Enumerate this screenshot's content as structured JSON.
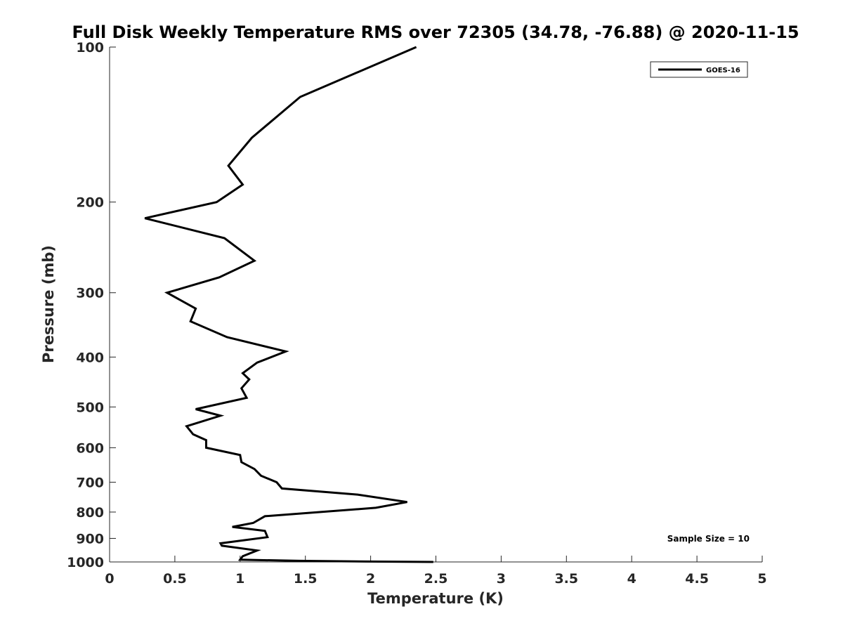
{
  "chart_data": {
    "type": "line",
    "title": "Full Disk Weekly Temperature RMS over 72305 (34.78, -76.88) @ 2020-11-15",
    "xlabel": "Temperature (K)",
    "ylabel": "Pressure (mb)",
    "xlim": [
      0,
      5
    ],
    "ylim": [
      1000,
      100
    ],
    "yscale": "log",
    "y_reversed": true,
    "xticks": [
      0,
      0.5,
      1,
      1.5,
      2,
      2.5,
      3,
      3.5,
      4,
      4.5,
      5
    ],
    "xtick_labels": [
      "0",
      "0.5",
      "1",
      "1.5",
      "2",
      "2.5",
      "3",
      "3.5",
      "4",
      "4.5",
      "5"
    ],
    "yticks": [
      100,
      200,
      300,
      400,
      500,
      600,
      700,
      800,
      900,
      1000
    ],
    "ytick_labels": [
      "100",
      "200",
      "300",
      "400",
      "500",
      "600",
      "700",
      "800",
      "900",
      "1000"
    ],
    "grid": false,
    "legend_position": "top-right",
    "annotation": "Sample Size = 10",
    "series": [
      {
        "name": "GOES-16",
        "color": "#000000",
        "x": [
          2.35,
          1.46,
          1.09,
          0.91,
          1.02,
          0.82,
          0.27,
          0.88,
          1.11,
          0.84,
          0.44,
          0.66,
          0.62,
          0.9,
          1.35,
          1.13,
          1.02,
          1.07,
          1.01,
          1.05,
          0.66,
          0.85,
          0.59,
          0.64,
          0.74,
          0.74,
          1.0,
          1.01,
          1.11,
          1.16,
          1.28,
          1.32,
          1.9,
          2.28,
          2.04,
          1.19,
          1.1,
          0.94,
          1.19,
          1.21,
          0.85,
          0.86,
          1.13,
          1.02,
          1.0,
          1.45,
          1.96,
          2.48
        ],
        "y": [
          100,
          125,
          150,
          170,
          185,
          200,
          215,
          235,
          260,
          280,
          300,
          322,
          341,
          366,
          390,
          410,
          430,
          442,
          460,
          480,
          505,
          520,
          545,
          565,
          580,
          600,
          620,
          640,
          660,
          680,
          700,
          720,
          740,
          765,
          785,
          815,
          840,
          855,
          870,
          895,
          920,
          930,
          950,
          975,
          990,
          995,
          998,
          1000
        ]
      }
    ]
  }
}
